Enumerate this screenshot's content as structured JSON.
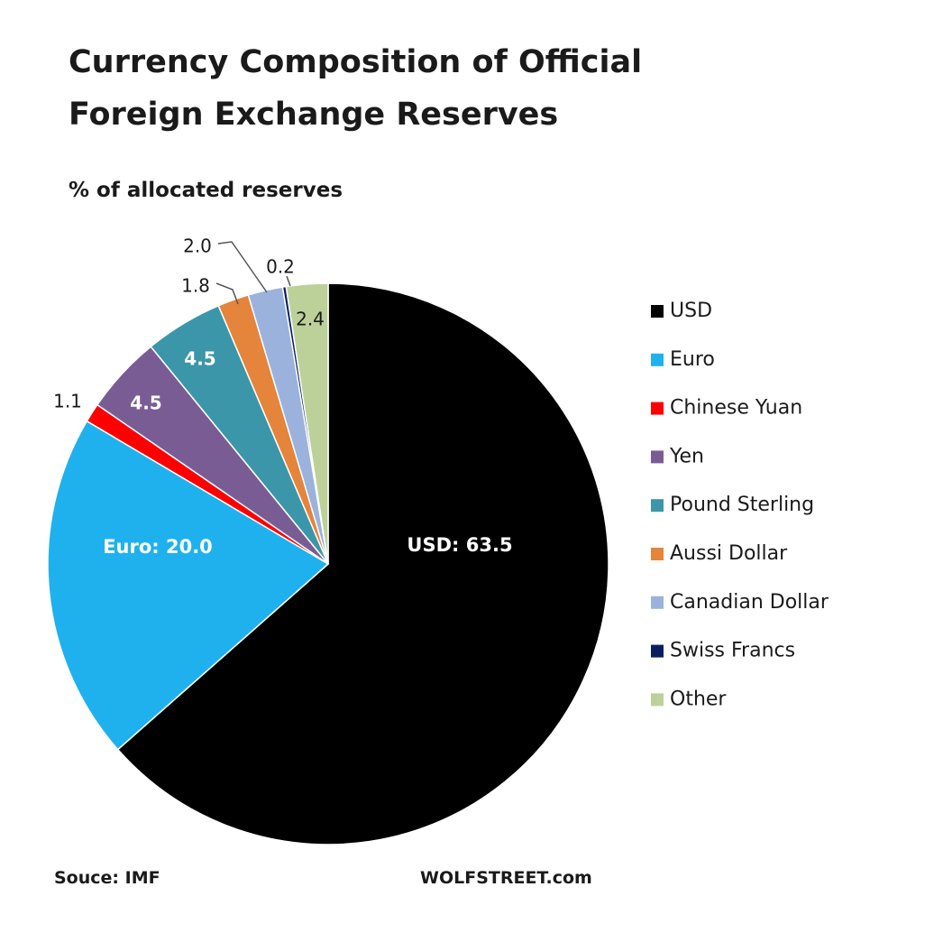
{
  "title": "Currency Composition of Official Foreign Exchange Reserves",
  "subtitle": "% of allocated reserves",
  "source": "Souce: IMF",
  "brand": "WOLFSTREET.com",
  "chart_data": {
    "type": "pie",
    "title": "Currency Composition of Official Foreign Exchange Reserves",
    "subtitle": "% of allocated reserves",
    "legend_position": "right",
    "slices": [
      {
        "name": "USD",
        "value": 63.5,
        "label": "USD: 63.5",
        "color": "#000000"
      },
      {
        "name": "Euro",
        "value": 20.0,
        "label": "Euro:  20.0",
        "color": "#1fb1ee"
      },
      {
        "name": "Chinese Yuan",
        "value": 1.1,
        "label": "1.1",
        "color": "#fe0000"
      },
      {
        "name": "Yen",
        "value": 4.5,
        "label": "4.5",
        "color": "#7a5c95"
      },
      {
        "name": "Pound Sterling",
        "value": 4.5,
        "label": "4.5",
        "color": "#3c96aa"
      },
      {
        "name": "Aussi Dollar",
        "value": 1.8,
        "label": "1.8",
        "color": "#e5843b"
      },
      {
        "name": "Canadian Dollar",
        "value": 2.0,
        "label": "2.0",
        "color": "#9bb2dc"
      },
      {
        "name": "Swiss Francs",
        "value": 0.2,
        "label": "0.2",
        "color": "#0b1f60"
      },
      {
        "name": "Other",
        "value": 2.4,
        "label": "2.4",
        "color": "#bcd199"
      }
    ]
  }
}
